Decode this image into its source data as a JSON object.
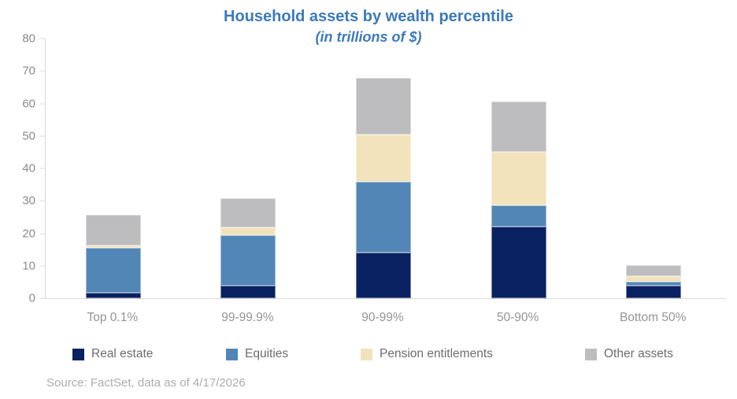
{
  "header": {
    "title": "Household assets by wealth percentile",
    "subtitle": "(in trillions of $)"
  },
  "footer": {
    "source": "Source: FactSet, data as of 4/17/2026"
  },
  "colors": {
    "title_blue": "#3c7ab9",
    "axis_line": "#d9d9d9",
    "axis_text": "#8a8a8a",
    "x_label_text": "#959595",
    "legend_text": "#6d6d6d",
    "source_text": "#adadad"
  },
  "chart_data": {
    "type": "bar",
    "stacked": true,
    "title": "Household assets by wealth percentile",
    "subtitle": "(in trillions of $)",
    "xlabel": "",
    "ylabel": "",
    "categories": [
      "Top 0.1%",
      "99-99.9%",
      "90-99%",
      "50-90%",
      "Bottom 50%"
    ],
    "series": [
      {
        "name": "Real estate",
        "color": "#0a2161",
        "values": [
          1.8,
          4.0,
          14.0,
          22.0,
          4.0
        ]
      },
      {
        "name": "Equities",
        "color": "#5286b7",
        "values": [
          13.8,
          15.4,
          22.0,
          6.5,
          1.2
        ]
      },
      {
        "name": "Pension entitlements",
        "color": "#f2e3bc",
        "values": [
          0.6,
          2.5,
          14.5,
          16.5,
          1.5
        ]
      },
      {
        "name": "Other assets",
        "color": "#bdbdbf",
        "values": [
          9.5,
          9.0,
          17.5,
          15.5,
          3.6
        ]
      }
    ],
    "totals": [
      25.7,
      30.9,
      68.0,
      60.5,
      10.3
    ],
    "ylim": [
      0,
      80
    ],
    "yticks": [
      0,
      10,
      20,
      30,
      40,
      50,
      60,
      70,
      80
    ],
    "grid": false,
    "legend_position": "bottom"
  }
}
